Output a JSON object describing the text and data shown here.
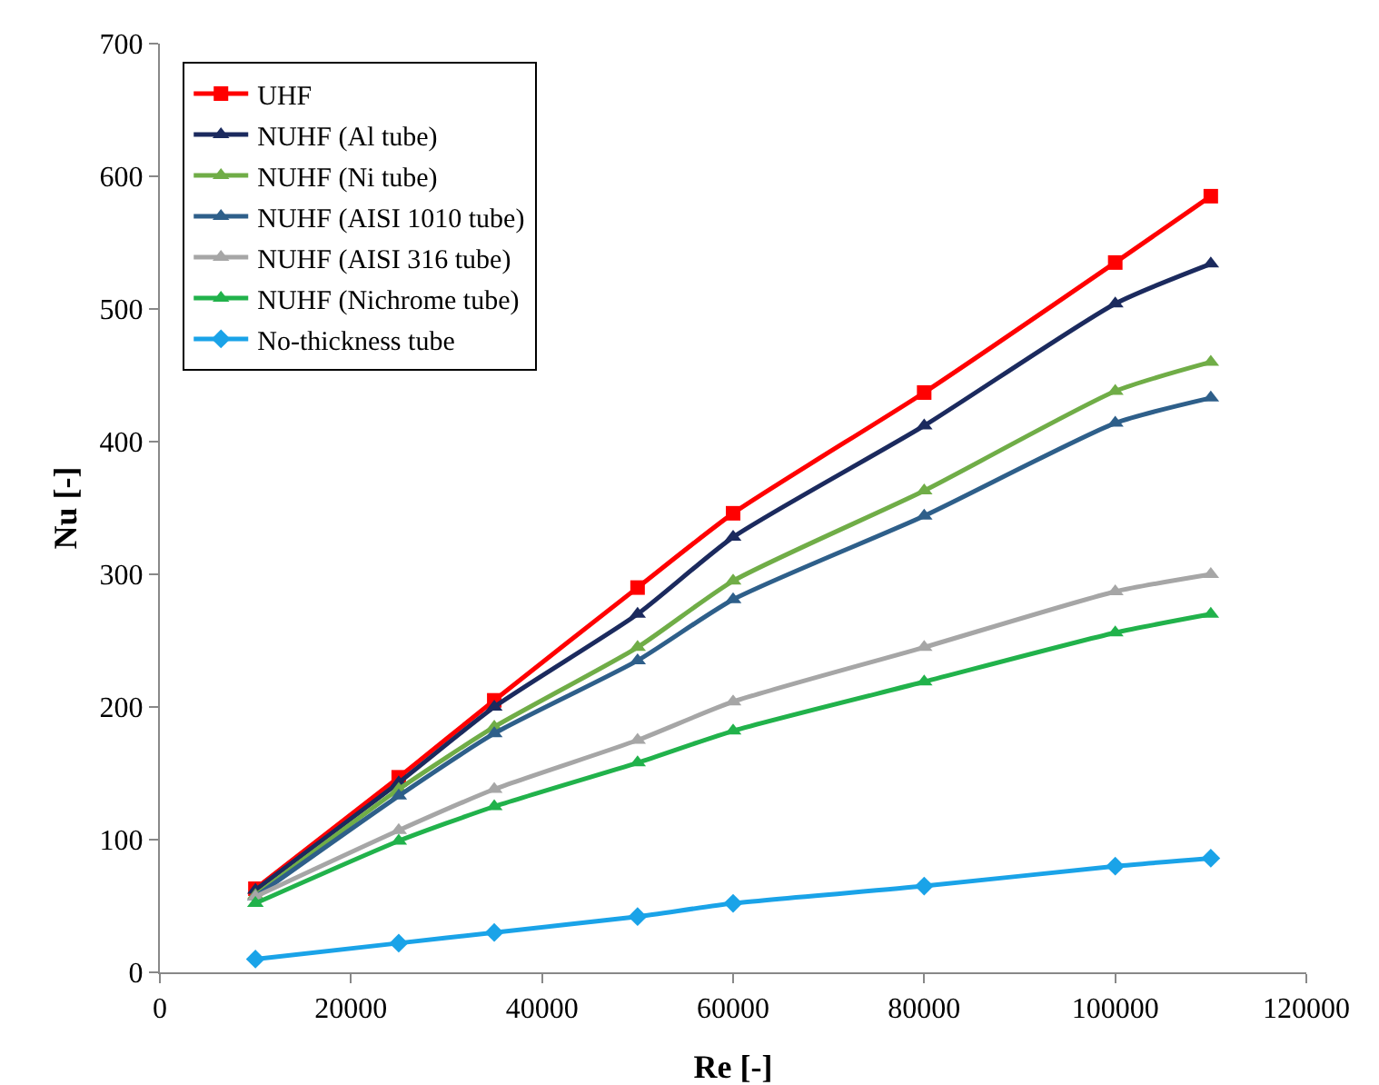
{
  "chart_data": {
    "type": "line",
    "xlabel": "Re [-]",
    "ylabel": "Nu [-]",
    "x": [
      10000,
      25000,
      35000,
      50000,
      60000,
      80000,
      100000,
      110000
    ],
    "xlim": [
      0,
      120000
    ],
    "xticks": [
      0,
      20000,
      40000,
      60000,
      80000,
      100000,
      120000
    ],
    "ylim": [
      0,
      700
    ],
    "yticks": [
      0,
      100,
      200,
      300,
      400,
      500,
      600,
      700
    ],
    "grid": false,
    "legend": "top left",
    "line_style": "solid",
    "series": [
      {
        "name": "UHF",
        "color": "#ff0000",
        "marker": "square",
        "values": [
          63,
          147,
          205,
          290,
          346,
          437,
          535,
          585
        ]
      },
      {
        "name": "NUHF (Al tube)",
        "color": "#1b2a5e",
        "marker": "triangle",
        "values": [
          62,
          143,
          200,
          270,
          328,
          412,
          504,
          534
        ]
      },
      {
        "name": "NUHF (Ni tube)",
        "color": "#70ad47",
        "marker": "triangle",
        "values": [
          58,
          138,
          185,
          245,
          295,
          363,
          438,
          460
        ]
      },
      {
        "name": "NUHF (AISI 1010 tube)",
        "color": "#2e5f8a",
        "marker": "triangle",
        "values": [
          57,
          133,
          180,
          235,
          281,
          344,
          414,
          433
        ]
      },
      {
        "name": "NUHF (AISI 316 tube)",
        "color": "#a6a6a6",
        "marker": "triangle",
        "values": [
          57,
          107,
          138,
          175,
          204,
          245,
          287,
          300
        ]
      },
      {
        "name": "NUHF (Nichrome tube)",
        "color": "#21b24b",
        "marker": "triangle",
        "values": [
          52,
          99,
          125,
          158,
          182,
          219,
          256,
          270
        ]
      },
      {
        "name": "No-thickness tube",
        "color": "#1aa3e8",
        "marker": "diamond",
        "values": [
          10,
          22,
          30,
          42,
          52,
          65,
          80,
          86
        ]
      }
    ]
  }
}
